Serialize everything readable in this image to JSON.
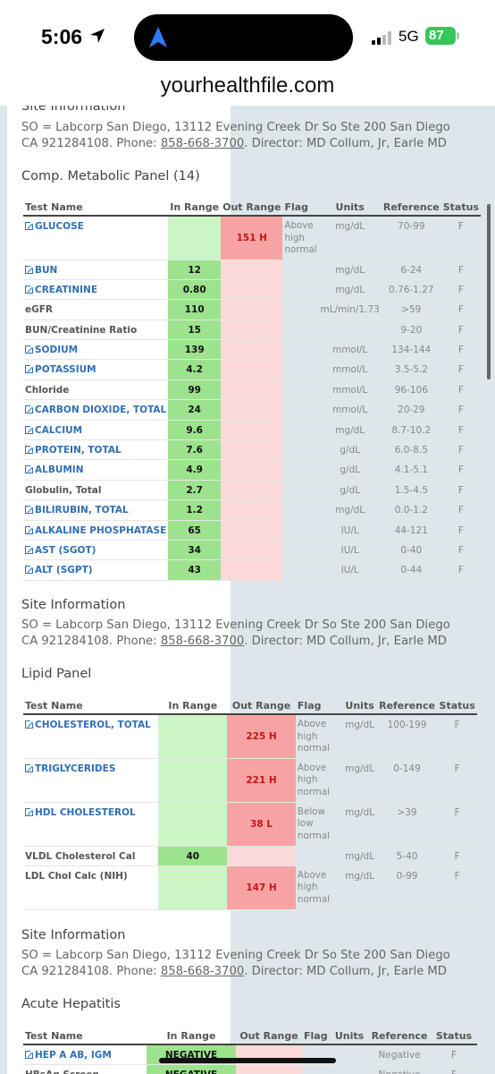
{
  "status": {
    "time": "5:06",
    "network": "5G",
    "battery": "87"
  },
  "url": "yourhealthfile.com",
  "site_info": {
    "title": "Site Information",
    "text_prefix": "SO = Labcorp San Diego, 13112 Evening Creek Dr So Ste 200 San Diego CA 921284108. Phone: ",
    "phone": "858-668-3700",
    "text_suffix": ". Director: MD Collum, Jr, Earle MD"
  },
  "columns": {
    "test": "Test Name",
    "in": "In Range",
    "out": "Out Range",
    "flag": "Flag",
    "units": "Units",
    "ref": "Reference",
    "status": "Status"
  },
  "cmp": {
    "title": "Comp. Metabolic Panel (14)",
    "rows": [
      {
        "name": "GLUCOSE",
        "link": true,
        "in": "",
        "out": "151 H",
        "flag": "Above high normal",
        "units": "mg/dL",
        "ref": "70-99",
        "status": "F"
      },
      {
        "name": "BUN",
        "link": true,
        "in": "12",
        "out": "",
        "flag": "",
        "units": "mg/dL",
        "ref": "6-24",
        "status": "F"
      },
      {
        "name": "CREATININE",
        "link": true,
        "in": "0.80",
        "out": "",
        "flag": "",
        "units": "mg/dL",
        "ref": "0.76-1.27",
        "status": "F"
      },
      {
        "name": "eGFR",
        "link": false,
        "in": "110",
        "out": "",
        "flag": "",
        "units": "mL/min/1.73",
        "ref": ">59",
        "status": "F"
      },
      {
        "name": "BUN/Creatinine Ratio",
        "link": false,
        "in": "15",
        "out": "",
        "flag": "",
        "units": "",
        "ref": "9-20",
        "status": "F"
      },
      {
        "name": "SODIUM",
        "link": true,
        "in": "139",
        "out": "",
        "flag": "",
        "units": "mmol/L",
        "ref": "134-144",
        "status": "F"
      },
      {
        "name": "POTASSIUM",
        "link": true,
        "in": "4.2",
        "out": "",
        "flag": "",
        "units": "mmol/L",
        "ref": "3.5-5.2",
        "status": "F"
      },
      {
        "name": "Chloride",
        "link": false,
        "in": "99",
        "out": "",
        "flag": "",
        "units": "mmol/L",
        "ref": "96-106",
        "status": "F"
      },
      {
        "name": "CARBON DIOXIDE, TOTAL",
        "link": true,
        "in": "24",
        "out": "",
        "flag": "",
        "units": "mmol/L",
        "ref": "20-29",
        "status": "F"
      },
      {
        "name": "CALCIUM",
        "link": true,
        "in": "9.6",
        "out": "",
        "flag": "",
        "units": "mg/dL",
        "ref": "8.7-10.2",
        "status": "F"
      },
      {
        "name": "PROTEIN, TOTAL",
        "link": true,
        "in": "7.6",
        "out": "",
        "flag": "",
        "units": "g/dL",
        "ref": "6.0-8.5",
        "status": "F"
      },
      {
        "name": "ALBUMIN",
        "link": true,
        "in": "4.9",
        "out": "",
        "flag": "",
        "units": "g/dL",
        "ref": "4.1-5.1",
        "status": "F"
      },
      {
        "name": "Globulin, Total",
        "link": false,
        "in": "2.7",
        "out": "",
        "flag": "",
        "units": "g/dL",
        "ref": "1.5-4.5",
        "status": "F"
      },
      {
        "name": "BILIRUBIN, TOTAL",
        "link": true,
        "in": "1.2",
        "out": "",
        "flag": "",
        "units": "mg/dL",
        "ref": "0.0-1.2",
        "status": "F"
      },
      {
        "name": "ALKALINE PHOSPHATASE",
        "link": true,
        "in": "65",
        "out": "",
        "flag": "",
        "units": "IU/L",
        "ref": "44-121",
        "status": "F"
      },
      {
        "name": "AST (SGOT)",
        "link": true,
        "in": "34",
        "out": "",
        "flag": "",
        "units": "IU/L",
        "ref": "0-40",
        "status": "F"
      },
      {
        "name": "ALT (SGPT)",
        "link": true,
        "in": "43",
        "out": "",
        "flag": "",
        "units": "IU/L",
        "ref": "0-44",
        "status": "F"
      }
    ]
  },
  "lipid": {
    "title": "Lipid Panel",
    "rows": [
      {
        "name": "CHOLESTEROL, TOTAL",
        "link": true,
        "in": "",
        "out": "225 H",
        "flag": "Above high normal",
        "units": "mg/dL",
        "ref": "100-199",
        "status": "F"
      },
      {
        "name": "TRIGLYCERIDES",
        "link": true,
        "in": "",
        "out": "221 H",
        "flag": "Above high normal",
        "units": "mg/dL",
        "ref": "0-149",
        "status": "F"
      },
      {
        "name": "HDL CHOLESTEROL",
        "link": true,
        "in": "",
        "out": "38 L",
        "flag": "Below low normal",
        "units": "mg/dL",
        "ref": ">39",
        "status": "F"
      },
      {
        "name": "VLDL Cholesterol Cal",
        "link": false,
        "in": "40",
        "out": "",
        "flag": "",
        "units": "mg/dL",
        "ref": "5-40",
        "status": "F"
      },
      {
        "name": "LDL Chol Calc (NIH)",
        "link": false,
        "in": "",
        "out": "147 H",
        "flag": "Above high normal",
        "units": "mg/dL",
        "ref": "0-99",
        "status": "F"
      }
    ]
  },
  "hep": {
    "title": "Acute Hepatitis",
    "rows": [
      {
        "name": "HEP A AB, IGM",
        "link": true,
        "in": "NEGATIVE",
        "out": "",
        "flag": "",
        "units": "",
        "ref": "Negative",
        "status": "F"
      },
      {
        "name": "HBsAg Screen",
        "link": false,
        "in": "NEGATIVE",
        "out": "",
        "flag": "",
        "units": "",
        "ref": "Negative",
        "status": "F"
      }
    ]
  }
}
